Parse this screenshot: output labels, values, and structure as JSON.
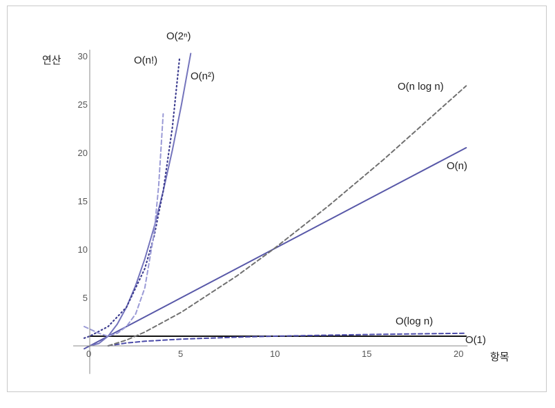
{
  "chart_data": {
    "type": "line",
    "xlabel": "항목",
    "ylabel": "연산",
    "xlim": [
      -0.3,
      20.5
    ],
    "ylim": [
      -0.3,
      30.5
    ],
    "x_ticks": [
      0,
      5,
      10,
      15,
      20
    ],
    "y_ticks": [
      5,
      10,
      15,
      20,
      25,
      30
    ],
    "grid": false,
    "series": [
      {
        "name": "O(1)",
        "color": "#111111",
        "style": "solid",
        "x": [
          0,
          20.5
        ],
        "y": [
          1,
          1
        ]
      },
      {
        "name": "O(log n)",
        "color": "#4a4aa8",
        "style": "dashed",
        "x": [
          1,
          2,
          3,
          5,
          8,
          10,
          13,
          16,
          20.5
        ],
        "y": [
          0,
          0.3,
          0.48,
          0.7,
          0.9,
          1.0,
          1.11,
          1.2,
          1.31
        ]
      },
      {
        "name": "O(n)",
        "color": "#5858a8",
        "style": "solid",
        "x": [
          -0.3,
          20.5
        ],
        "y": [
          -0.3,
          20.5
        ]
      },
      {
        "name": "O(n log n)",
        "color": "#707070",
        "style": "dashed",
        "x": [
          1,
          2,
          3,
          5,
          8,
          10,
          13,
          16,
          20.5
        ],
        "y": [
          0,
          0.6,
          1.43,
          3.49,
          7.22,
          10.0,
          14.48,
          19.27,
          26.9
        ]
      },
      {
        "name": "O(n²)",
        "color": "#7474bc",
        "style": "solid",
        "x": [
          0,
          0.5,
          1,
          1.5,
          2,
          2.5,
          3,
          3.5,
          4,
          4.5,
          5,
          5.5
        ],
        "y": [
          0,
          0.25,
          1,
          2.25,
          4,
          6.25,
          9,
          12.25,
          16,
          20.25,
          25,
          30.25
        ]
      },
      {
        "name": "O(2ⁿ)",
        "color": "#3e3e90",
        "style": "dotted",
        "x": [
          -0.3,
          0,
          1,
          2,
          3,
          3.5,
          4,
          4.5,
          4.9
        ],
        "y": [
          0.8,
          1,
          2,
          4,
          8,
          11.3,
          16,
          22.6,
          29.9
        ]
      },
      {
        "name": "O(n!)",
        "color": "#9a9ad6",
        "style": "dashed",
        "x": [
          -0.3,
          0.5,
          1,
          1.5,
          2,
          2.5,
          3,
          3.5,
          3.75,
          4
        ],
        "y": [
          2,
          1.3,
          1,
          1.3,
          2,
          3.3,
          6,
          11.6,
          16.5,
          24
        ]
      }
    ],
    "labels": [
      {
        "series": "O(1)",
        "text": "O(1)"
      },
      {
        "series": "O(log n)",
        "text": "O(log n)"
      },
      {
        "series": "O(n)",
        "text": "O(n)"
      },
      {
        "series": "O(n log n)",
        "text": "O(n log n)"
      },
      {
        "series": "O(n²)",
        "text": "O(n²)"
      },
      {
        "series": "O(2ⁿ)",
        "text": "O(2ⁿ)"
      },
      {
        "series": "O(n!)",
        "text": "O(n!)"
      }
    ]
  }
}
